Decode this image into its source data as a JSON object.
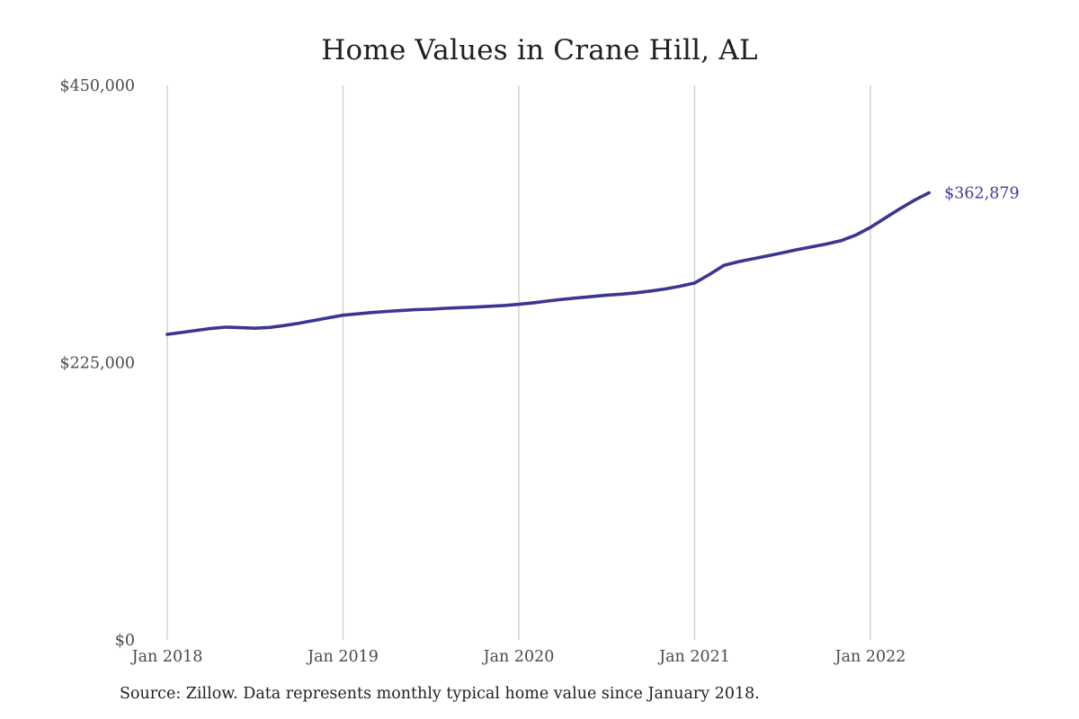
{
  "chart_data": {
    "type": "line",
    "title": "Home Values in Crane Hill, AL",
    "source_note": "Source: Zillow. Data represents monthly typical home value since January 2018.",
    "x_start": "Jan 2018",
    "x_frequency": "monthly",
    "x_tick_labels": [
      "Jan 2018",
      "Jan 2019",
      "Jan 2020",
      "Jan 2021",
      "Jan 2022"
    ],
    "x_tick_months": [
      0,
      12,
      24,
      36,
      48
    ],
    "y_tick_labels": [
      "$450,000",
      "$225,000",
      "$0"
    ],
    "y_tick_values": [
      450000,
      225000,
      0
    ],
    "ylim": [
      0,
      450000
    ],
    "grid": "vertical-only",
    "legend": "none",
    "end_label": "$362,879",
    "end_value": 362879,
    "line_color": "#3b3691",
    "end_label_color": "#3f3a9b",
    "grid_color": "#cccccc",
    "series": [
      {
        "name": "Typical home value",
        "values": [
          248000,
          249500,
          251200,
          252800,
          253800,
          253400,
          252900,
          253600,
          255100,
          257000,
          259200,
          261400,
          263500,
          264600,
          265700,
          266600,
          267400,
          268000,
          268400,
          269100,
          269600,
          270100,
          270700,
          271400,
          272300,
          273600,
          275000,
          276400,
          277600,
          278700,
          279800,
          280600,
          281700,
          283100,
          284800,
          287000,
          289600,
          296500,
          303900,
          307000,
          309300,
          311700,
          314200,
          316700,
          319000,
          321300,
          324000,
          328500,
          334800,
          342300,
          349800,
          356800,
          362879
        ]
      }
    ]
  }
}
